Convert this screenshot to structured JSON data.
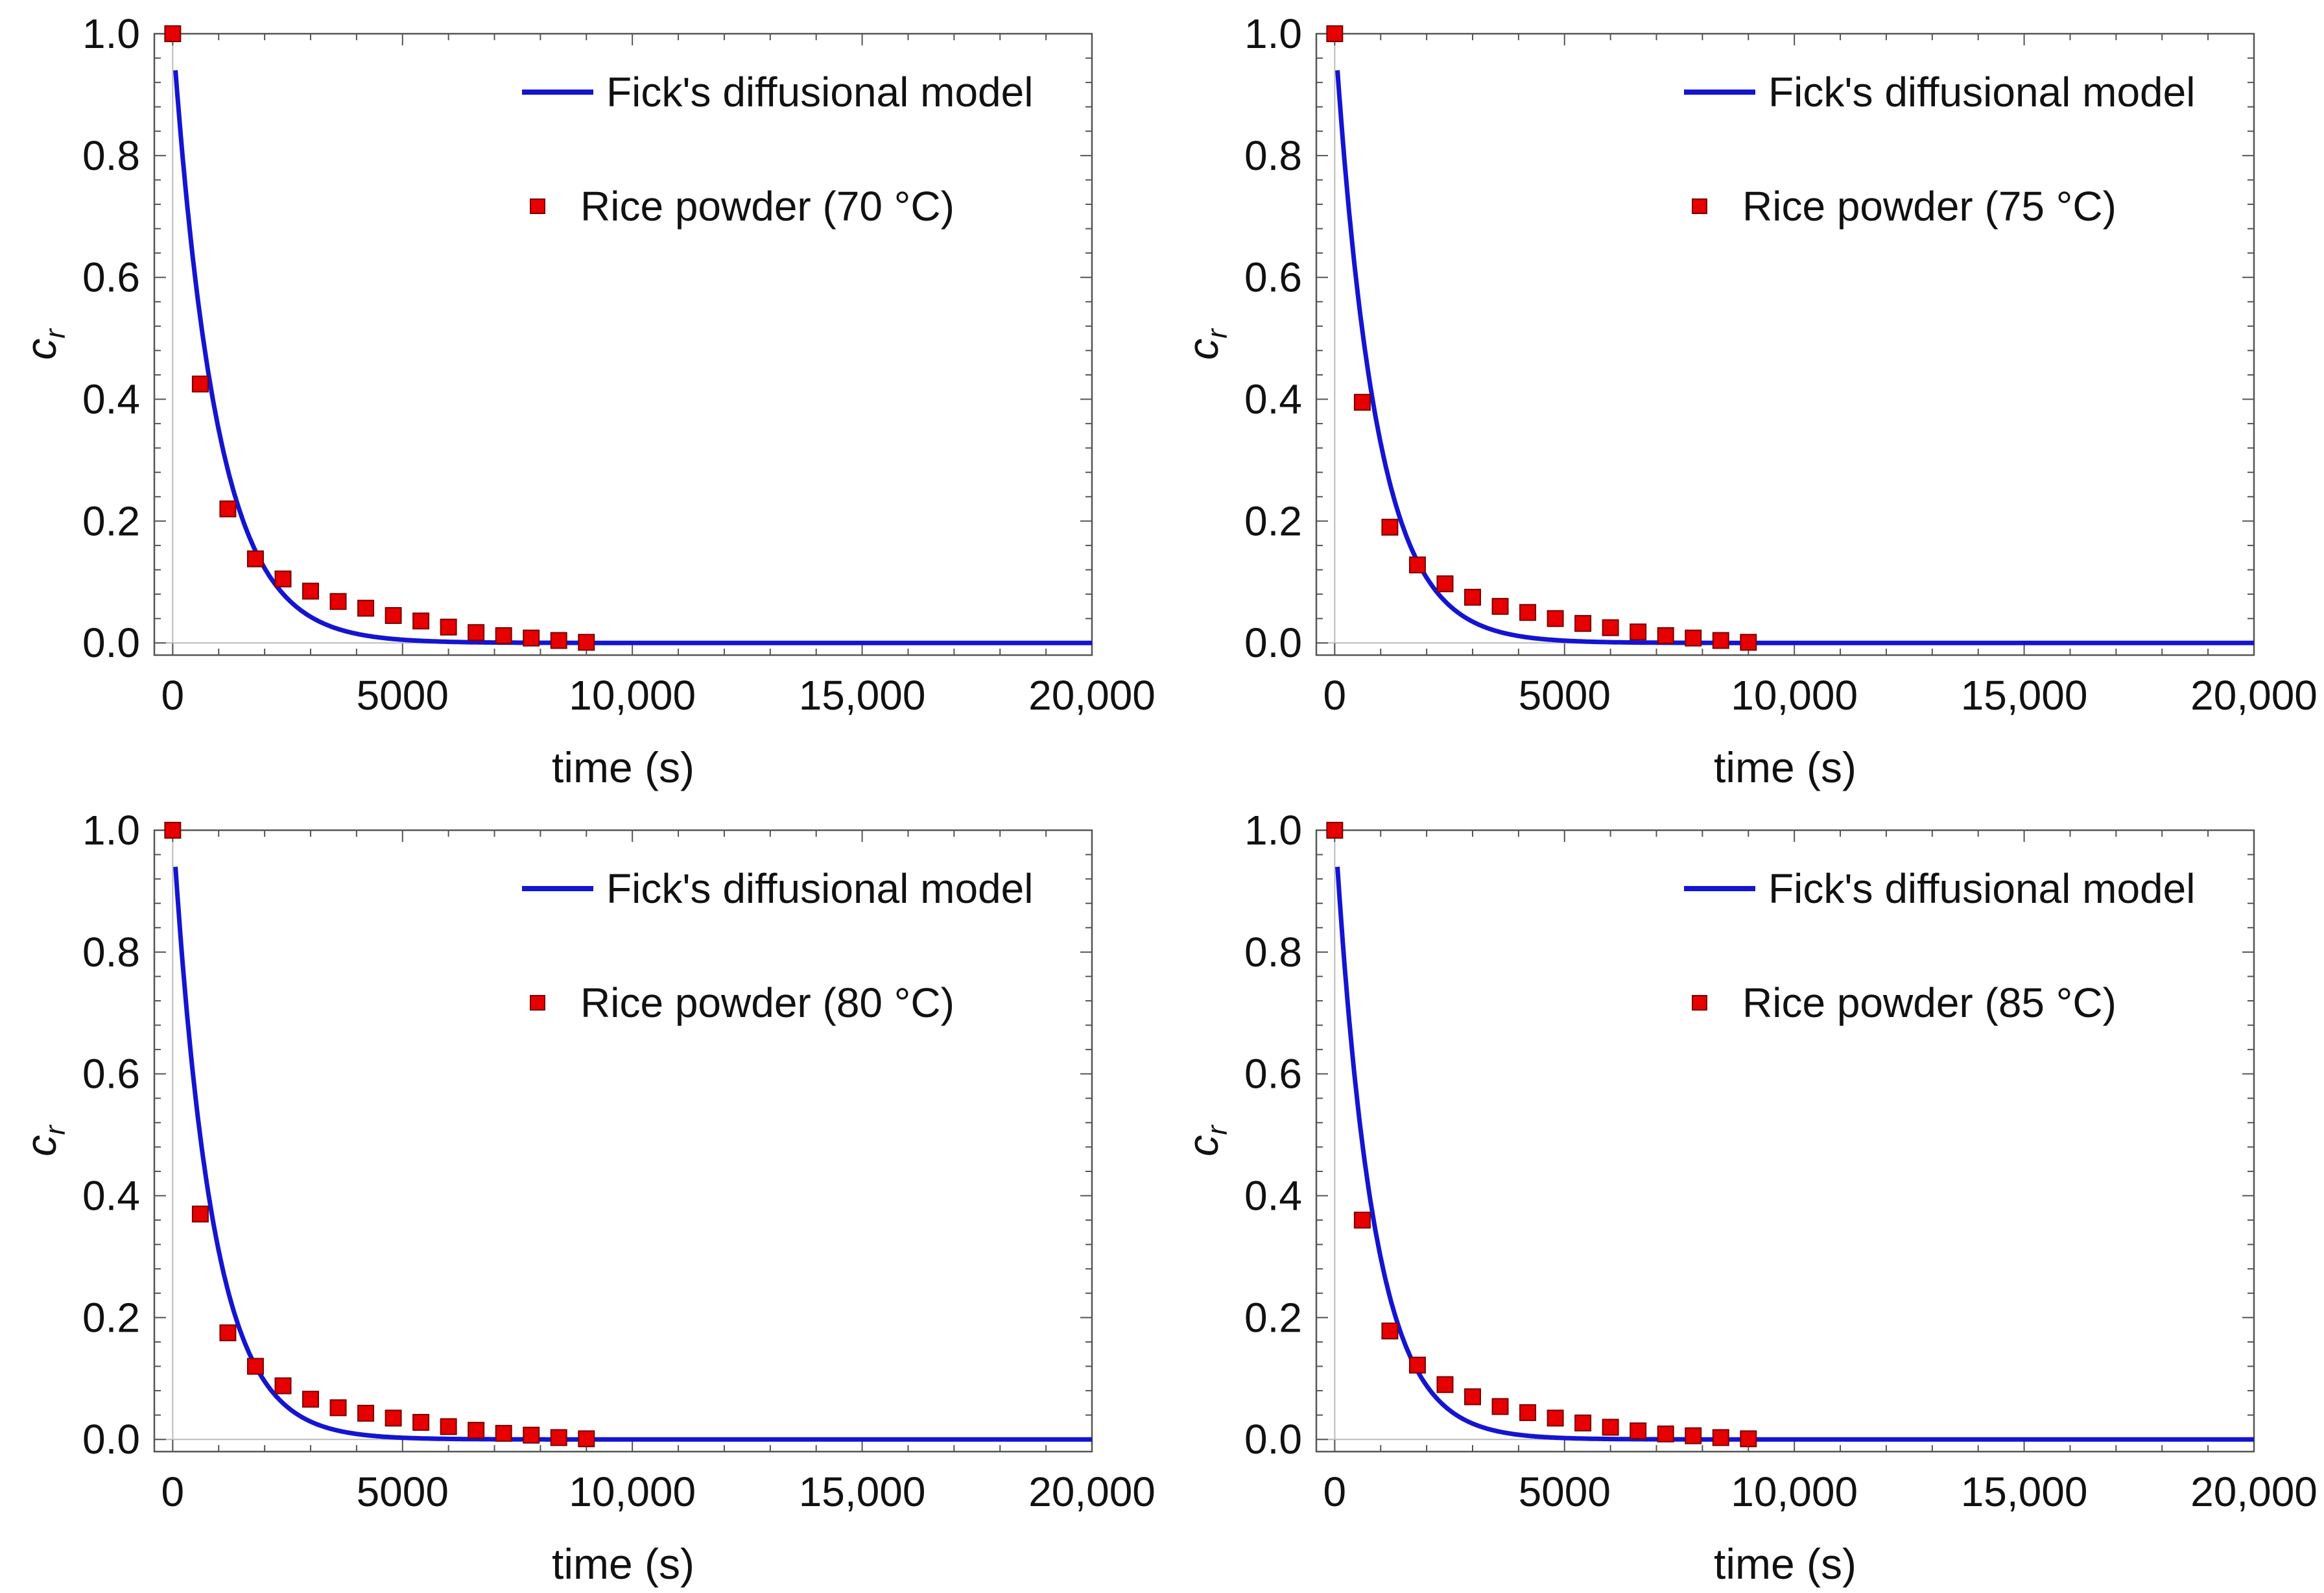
{
  "colors": {
    "model_line": "#1414d2",
    "marker_fill": "#e60000",
    "marker_stroke": "#7a0000",
    "frame": "#555555",
    "ref_line": "#bbbbbb"
  },
  "chart_data": [
    {
      "type": "scatter",
      "xlabel": "time (s)",
      "ylabel": "c",
      "ylabel_sub": "r",
      "xlim": [
        -400,
        20000
      ],
      "ylim": [
        -0.02,
        1.0
      ],
      "x_ticks": [
        0,
        5000,
        10000,
        15000,
        20000
      ],
      "x_tick_labels": [
        "0",
        "5000",
        "10,000",
        "15,000",
        "20,000"
      ],
      "y_ticks": [
        0.0,
        0.2,
        0.4,
        0.6,
        0.8,
        1.0
      ],
      "y_tick_labels": [
        "0.0",
        "0.2",
        "0.4",
        "0.6",
        "0.8",
        "1.0"
      ],
      "legend": [
        "Fick's diffusional model",
        "Rice powder (70 °C)"
      ],
      "legend_position": "top-right",
      "model": {
        "name": "Fick's diffusional model",
        "a": 0.94,
        "k": 0.00105,
        "x_start": 60
      },
      "series": [
        {
          "name": "Rice powder (70 °C)",
          "x": [
            0,
            600,
            1200,
            1800,
            2400,
            3000,
            3600,
            4200,
            4800,
            5400,
            6000,
            6600,
            7200,
            7800,
            8400,
            9000
          ],
          "y": [
            1.0,
            0.425,
            0.22,
            0.138,
            0.105,
            0.085,
            0.068,
            0.057,
            0.045,
            0.036,
            0.026,
            0.017,
            0.012,
            0.008,
            0.004,
            0.001
          ]
        }
      ]
    },
    {
      "type": "scatter",
      "xlabel": "time (s)",
      "ylabel": "c",
      "ylabel_sub": "r",
      "xlim": [
        -400,
        20000
      ],
      "ylim": [
        -0.02,
        1.0
      ],
      "x_ticks": [
        0,
        5000,
        10000,
        15000,
        20000
      ],
      "x_tick_labels": [
        "0",
        "5000",
        "10,000",
        "15,000",
        "20,000"
      ],
      "y_ticks": [
        0.0,
        0.2,
        0.4,
        0.6,
        0.8,
        1.0
      ],
      "y_tick_labels": [
        "0.0",
        "0.2",
        "0.4",
        "0.6",
        "0.8",
        "1.0"
      ],
      "legend": [
        "Fick's diffusional model",
        "Rice powder (75 °C)"
      ],
      "legend_position": "top-right",
      "model": {
        "name": "Fick's diffusional model",
        "a": 0.94,
        "k": 0.00112,
        "x_start": 60
      },
      "series": [
        {
          "name": "Rice powder (75 °C)",
          "x": [
            0,
            600,
            1200,
            1800,
            2400,
            3000,
            3600,
            4200,
            4800,
            5400,
            6000,
            6600,
            7200,
            7800,
            8400,
            9000
          ],
          "y": [
            1.0,
            0.395,
            0.19,
            0.128,
            0.097,
            0.075,
            0.06,
            0.05,
            0.04,
            0.032,
            0.025,
            0.018,
            0.012,
            0.008,
            0.004,
            0.001
          ]
        }
      ]
    },
    {
      "type": "scatter",
      "xlabel": "time (s)",
      "ylabel": "c",
      "ylabel_sub": "r",
      "xlim": [
        -400,
        20000
      ],
      "ylim": [
        -0.02,
        1.0
      ],
      "x_ticks": [
        0,
        5000,
        10000,
        15000,
        20000
      ],
      "x_tick_labels": [
        "0",
        "5000",
        "10,000",
        "15,000",
        "20,000"
      ],
      "y_ticks": [
        0.0,
        0.2,
        0.4,
        0.6,
        0.8,
        1.0
      ],
      "y_tick_labels": [
        "0.0",
        "0.2",
        "0.4",
        "0.6",
        "0.8",
        "1.0"
      ],
      "legend": [
        "Fick's diffusional model",
        "Rice powder (80 °C)"
      ],
      "legend_position": "top-right",
      "model": {
        "name": "Fick's diffusional model",
        "a": 0.94,
        "k": 0.00118,
        "x_start": 60
      },
      "series": [
        {
          "name": "Rice powder (80 °C)",
          "x": [
            0,
            600,
            1200,
            1800,
            2400,
            3000,
            3600,
            4200,
            4800,
            5400,
            6000,
            6600,
            7200,
            7800,
            8400,
            9000
          ],
          "y": [
            1.0,
            0.37,
            0.175,
            0.12,
            0.088,
            0.066,
            0.052,
            0.043,
            0.035,
            0.028,
            0.021,
            0.015,
            0.01,
            0.007,
            0.003,
            0.001
          ]
        }
      ]
    },
    {
      "type": "scatter",
      "xlabel": "time (s)",
      "ylabel": "c",
      "ylabel_sub": "r",
      "xlim": [
        -400,
        20000
      ],
      "ylim": [
        -0.02,
        1.0
      ],
      "x_ticks": [
        0,
        5000,
        10000,
        15000,
        20000
      ],
      "x_tick_labels": [
        "0",
        "5000",
        "10,000",
        "15,000",
        "20,000"
      ],
      "y_ticks": [
        0.0,
        0.2,
        0.4,
        0.6,
        0.8,
        1.0
      ],
      "y_tick_labels": [
        "0.0",
        "0.2",
        "0.4",
        "0.6",
        "0.8",
        "1.0"
      ],
      "legend": [
        "Fick's diffusional model",
        "Rice powder (85 °C)"
      ],
      "legend_position": "top-right",
      "model": {
        "name": "Fick's diffusional model",
        "a": 0.94,
        "k": 0.00122,
        "x_start": 60
      },
      "series": [
        {
          "name": "Rice powder (85 °C)",
          "x": [
            0,
            600,
            1200,
            1800,
            2400,
            3000,
            3600,
            4200,
            4800,
            5400,
            6000,
            6600,
            7200,
            7800,
            8400,
            9000
          ],
          "y": [
            1.0,
            0.36,
            0.178,
            0.122,
            0.09,
            0.07,
            0.054,
            0.044,
            0.035,
            0.027,
            0.02,
            0.014,
            0.009,
            0.006,
            0.003,
            0.001
          ]
        }
      ]
    }
  ]
}
